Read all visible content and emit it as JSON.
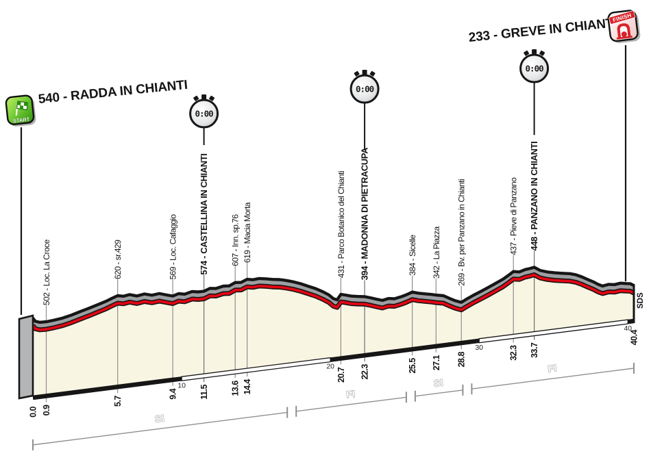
{
  "header": {
    "start_label": "540 - RADDA IN CHIANTI",
    "finish_label": "233 -  GREVE IN CHIANTI",
    "start_badge": "START",
    "finish_badge": "FINISH",
    "timecheck_display": "0:00",
    "brand_mark": "SDS"
  },
  "colors": {
    "red": "#e30613",
    "band_gray": "#9d9fa2",
    "fill_cream": "#f9f5e3",
    "outline": "#161616",
    "wall_gray": "#b3b5b7",
    "start_green": "#2f8f0d",
    "finish_red": "#d8232a"
  },
  "chart_data": {
    "type": "area",
    "title": "Stage elevation profile Radda in Chianti - Greve in Chianti",
    "x_unit": "km",
    "y_unit": "m",
    "xlim": [
      0,
      40.4
    ],
    "axis_markers": [
      10,
      20,
      30,
      40
    ],
    "start": {
      "km": 0,
      "elev": 540,
      "name": "RADDA IN CHIANTI"
    },
    "finish": {
      "km": 40.4,
      "elev": 233,
      "name": "GREVE IN CHIANTI"
    },
    "waypoints": [
      {
        "km": 0.9,
        "elev": 502,
        "label": "502 - Loc. La Croce",
        "bold": false,
        "timecheck": false
      },
      {
        "km": 5.7,
        "elev": 620,
        "label": "620 - sr.429",
        "bold": false,
        "timecheck": false
      },
      {
        "km": 9.4,
        "elev": 569,
        "label": "569 - Loc. Cafaggio",
        "bold": false,
        "timecheck": false
      },
      {
        "km": 11.5,
        "elev": 574,
        "label": "574 - CASTELLINA IN CHIANTI",
        "bold": true,
        "timecheck": true,
        "clock_y": 166
      },
      {
        "km": 13.6,
        "elev": 607,
        "label": "607 - Inn. sp.76",
        "bold": false,
        "timecheck": false
      },
      {
        "km": 14.4,
        "elev": 619,
        "label": "619 - Macia Morta",
        "bold": false,
        "timecheck": false
      },
      {
        "km": 20.7,
        "elev": 431,
        "label": "431 - Parco Botanico del Chianti",
        "bold": false,
        "timecheck": false
      },
      {
        "km": 22.3,
        "elev": 394,
        "label": "394 - MADONNA DI PIETRACUPA",
        "bold": true,
        "timecheck": true,
        "clock_y": 130
      },
      {
        "km": 25.5,
        "elev": 384,
        "label": "384 - Sicelle",
        "bold": false,
        "timecheck": false
      },
      {
        "km": 27.1,
        "elev": 342,
        "label": "342 - La Piazza",
        "bold": false,
        "timecheck": false
      },
      {
        "km": 28.8,
        "elev": 269,
        "label": "269 - Bv. per Panzano in Chianti",
        "bold": false,
        "timecheck": false
      },
      {
        "km": 32.3,
        "elev": 437,
        "label": "437 - Pieve di Panzano",
        "bold": false,
        "timecheck": false
      },
      {
        "km": 33.7,
        "elev": 448,
        "label": "448 - PANZANO IN CHIANTI",
        "bold": true,
        "timecheck": true,
        "clock_y": 100
      }
    ],
    "km_ticks": [
      {
        "km": 0,
        "label": "0.0"
      },
      {
        "km": 0.9,
        "label": "0.9"
      },
      {
        "km": 5.7,
        "label": "5.7"
      },
      {
        "km": 9.4,
        "label": "9.4"
      },
      {
        "km": 11.5,
        "label": "11.5"
      },
      {
        "km": 13.6,
        "label": "13.6"
      },
      {
        "km": 14.4,
        "label": "14.4"
      },
      {
        "km": 20.7,
        "label": "20.7"
      },
      {
        "km": 22.3,
        "label": "22.3"
      },
      {
        "km": 25.5,
        "label": "25.5"
      },
      {
        "km": 27.1,
        "label": "27.1"
      },
      {
        "km": 28.8,
        "label": "28.8"
      },
      {
        "km": 32.3,
        "label": "32.3"
      },
      {
        "km": 33.7,
        "label": "33.7"
      },
      {
        "km": 40.4,
        "label": "40.4"
      }
    ],
    "provinces": [
      {
        "label": "SI",
        "from": 0,
        "to": 17.1
      },
      {
        "label": "FI",
        "from": 17.7,
        "to": 25.1
      },
      {
        "label": "SI",
        "from": 25.7,
        "to": 28.9
      },
      {
        "label": "FI",
        "from": 29.5,
        "to": 40.4
      }
    ],
    "profile_points": [
      [
        0,
        540
      ],
      [
        0.15,
        516
      ],
      [
        0.45,
        504
      ],
      [
        0.9,
        502
      ],
      [
        1.4,
        506
      ],
      [
        2.0,
        513
      ],
      [
        2.6,
        526
      ],
      [
        3.2,
        543
      ],
      [
        3.8,
        559
      ],
      [
        4.4,
        576
      ],
      [
        4.9,
        591
      ],
      [
        5.3,
        606
      ],
      [
        5.7,
        620
      ],
      [
        6.1,
        611
      ],
      [
        6.5,
        617
      ],
      [
        7.0,
        601
      ],
      [
        7.5,
        608
      ],
      [
        8.0,
        593
      ],
      [
        8.5,
        598
      ],
      [
        9.0,
        581
      ],
      [
        9.4,
        569
      ],
      [
        9.8,
        580
      ],
      [
        10.2,
        571
      ],
      [
        10.7,
        583
      ],
      [
        11.1,
        575
      ],
      [
        11.5,
        574
      ],
      [
        11.9,
        589
      ],
      [
        12.3,
        583
      ],
      [
        12.8,
        593
      ],
      [
        13.2,
        589
      ],
      [
        13.6,
        607
      ],
      [
        14.0,
        603
      ],
      [
        14.4,
        619
      ],
      [
        14.8,
        611
      ],
      [
        15.2,
        614
      ],
      [
        15.7,
        605
      ],
      [
        16.1,
        596
      ],
      [
        16.6,
        588
      ],
      [
        17.0,
        577
      ],
      [
        17.5,
        561
      ],
      [
        18.0,
        541
      ],
      [
        18.5,
        517
      ],
      [
        19.0,
        494
      ],
      [
        19.5,
        465
      ],
      [
        19.9,
        438
      ],
      [
        20.2,
        408
      ],
      [
        20.45,
        396
      ],
      [
        20.7,
        431
      ],
      [
        21.0,
        423
      ],
      [
        21.4,
        410
      ],
      [
        21.8,
        402
      ],
      [
        22.3,
        394
      ],
      [
        22.7,
        381
      ],
      [
        23.1,
        366
      ],
      [
        23.5,
        352
      ],
      [
        23.9,
        360
      ],
      [
        24.3,
        353
      ],
      [
        24.8,
        362
      ],
      [
        25.1,
        370
      ],
      [
        25.5,
        384
      ],
      [
        25.9,
        371
      ],
      [
        26.4,
        359
      ],
      [
        26.8,
        350
      ],
      [
        27.1,
        342
      ],
      [
        27.6,
        331
      ],
      [
        28.0,
        307
      ],
      [
        28.4,
        285
      ],
      [
        28.8,
        269
      ],
      [
        29.2,
        289
      ],
      [
        29.6,
        307
      ],
      [
        30.1,
        327
      ],
      [
        30.6,
        348
      ],
      [
        31.1,
        370
      ],
      [
        31.6,
        393
      ],
      [
        32.0,
        417
      ],
      [
        32.3,
        437
      ],
      [
        32.7,
        429
      ],
      [
        33.1,
        440
      ],
      [
        33.4,
        443
      ],
      [
        33.7,
        448
      ],
      [
        34.1,
        421
      ],
      [
        34.6,
        403
      ],
      [
        35.1,
        391
      ],
      [
        35.6,
        381
      ],
      [
        36.1,
        372
      ],
      [
        36.5,
        359
      ],
      [
        36.9,
        339
      ],
      [
        37.3,
        315
      ],
      [
        37.7,
        293
      ],
      [
        38.0,
        272
      ],
      [
        38.3,
        257
      ],
      [
        38.7,
        263
      ],
      [
        39.1,
        256
      ],
      [
        39.5,
        261
      ],
      [
        39.9,
        253
      ],
      [
        40.15,
        249
      ],
      [
        40.4,
        233
      ]
    ]
  }
}
